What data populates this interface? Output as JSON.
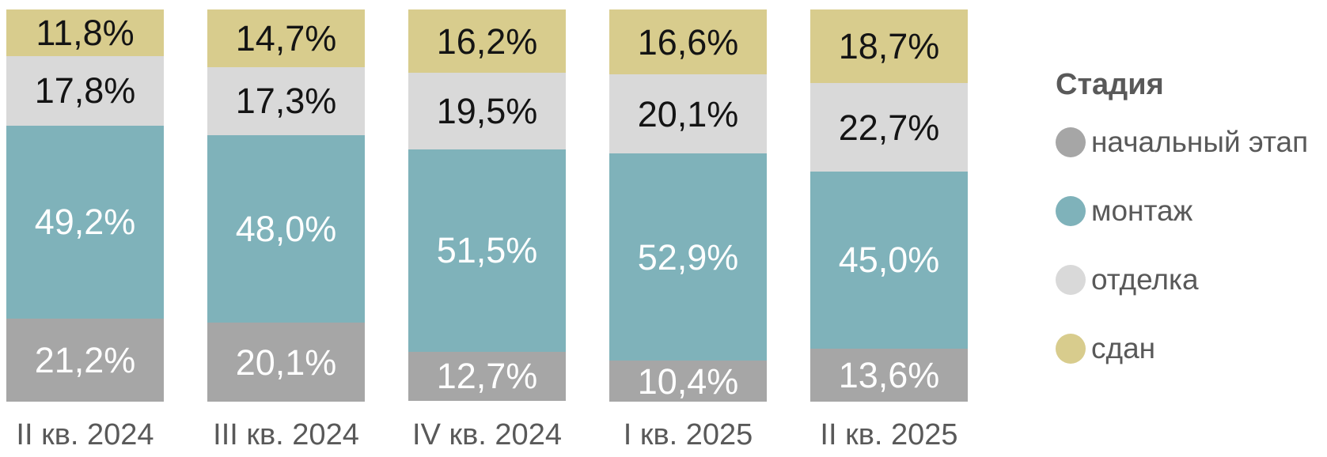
{
  "chart_data": {
    "type": "bar",
    "subtype": "stacked-100-percent-vertical",
    "title": "",
    "xlabel": "",
    "ylabel": "",
    "ylim": [
      0,
      100
    ],
    "grid": false,
    "value_format": "one-decimal-comma-percent",
    "categories": [
      "II кв. 2024",
      "III кв. 2024",
      "IV кв. 2024",
      "I кв. 2025",
      "II кв. 2025"
    ],
    "series": [
      {
        "key": "initial-stage",
        "name": "начальный этап",
        "color": "#a6a6a6",
        "label_color": "#ffffff",
        "values": [
          21.2,
          20.1,
          12.7,
          10.4,
          13.6
        ]
      },
      {
        "key": "installation",
        "name": "монтаж",
        "color": "#7fb2ba",
        "label_color": "#ffffff",
        "values": [
          49.2,
          48.0,
          51.5,
          52.9,
          45.0
        ]
      },
      {
        "key": "finishing",
        "name": "отделка",
        "color": "#d9d9d9",
        "label_color": "#141414",
        "values": [
          17.8,
          17.3,
          19.5,
          20.1,
          22.7
        ]
      },
      {
        "key": "delivered",
        "name": "сдан",
        "color": "#d8cc8d",
        "label_color": "#141414",
        "values": [
          11.8,
          14.7,
          16.2,
          16.6,
          18.7
        ]
      }
    ],
    "legend": {
      "title": "Стадия",
      "position": "right"
    },
    "colors": {
      "axis_text": "#595959",
      "legend_text": "#595959",
      "background": "#ffffff"
    }
  }
}
